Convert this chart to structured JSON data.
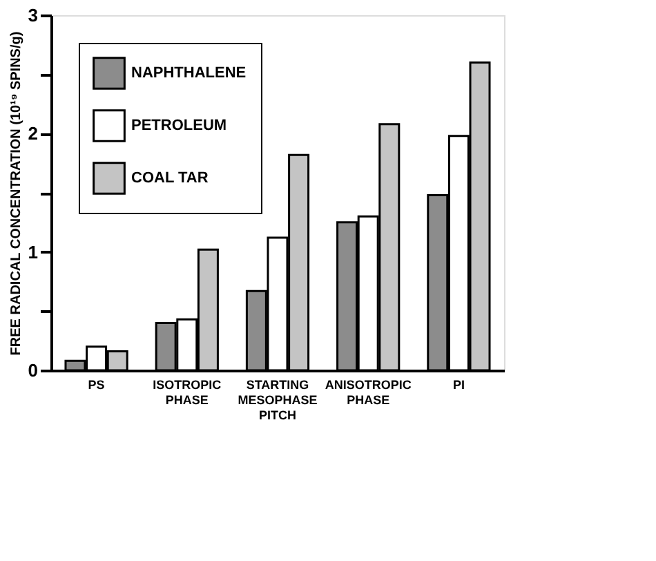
{
  "chart_data": {
    "type": "bar",
    "ylabel": "FREE RADICAL CONCENTRATION (10¹⁹ SPINS/g)",
    "categories": [
      "PS",
      "ISOTROPIC PHASE",
      "STARTING MESOPHASE PITCH",
      "ANISOTROPIC PHASE",
      "PI"
    ],
    "series": [
      {
        "name": "NAPHTHALENE",
        "color": "#8c8c8c",
        "values": [
          0.08,
          0.4,
          0.67,
          1.25,
          1.48
        ]
      },
      {
        "name": "PETROLEUM",
        "color": "#ffffff",
        "values": [
          0.2,
          0.43,
          1.12,
          1.3,
          1.98
        ]
      },
      {
        "name": "COAL TAR",
        "color": "#c4c4c4",
        "values": [
          0.16,
          1.02,
          1.82,
          2.08,
          2.6
        ]
      }
    ],
    "ylim": [
      0,
      3
    ],
    "yticks": [
      0,
      {
        "value": 0.5,
        "label": null
      },
      1,
      {
        "value": 1.5,
        "label": null
      },
      2,
      {
        "value": 2.5,
        "label": null
      },
      3
    ],
    "grid": false,
    "legend": "top left"
  }
}
